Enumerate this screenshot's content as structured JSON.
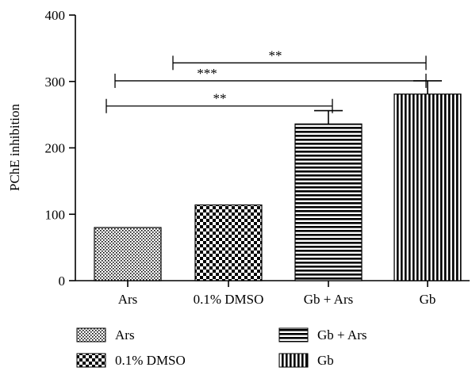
{
  "chart_data": {
    "type": "bar",
    "title": "",
    "xlabel": "",
    "ylabel": "PChE inhibition",
    "ylim": [
      0,
      400
    ],
    "yticks": [
      0,
      100,
      200,
      300,
      400
    ],
    "grid": false,
    "categories": [
      "Ars",
      "0.1% DMSO",
      "Gb + Ars",
      "Gb"
    ],
    "values": [
      80,
      114,
      236,
      281
    ],
    "errors": [
      2,
      2,
      20,
      20
    ],
    "patterns": [
      "dots",
      "checker",
      "hlines",
      "vlines"
    ],
    "significance": [
      {
        "from": 1,
        "to": 3,
        "label": "**",
        "y": 328
      },
      {
        "from": 0,
        "to": 3,
        "label": "***",
        "y": 301
      },
      {
        "from": 0,
        "to": 2,
        "label": "**",
        "y": 263
      }
    ],
    "legend": {
      "placement": "bottom",
      "entries": [
        {
          "label": "Ars",
          "pattern": "dots"
        },
        {
          "label": "Gb + Ars",
          "pattern": "hlines"
        },
        {
          "label": "0.1% DMSO",
          "pattern": "checker"
        },
        {
          "label": "Gb",
          "pattern": "vlines"
        }
      ]
    },
    "colors": {
      "ink": "#000000",
      "background": "#ffffff"
    }
  }
}
